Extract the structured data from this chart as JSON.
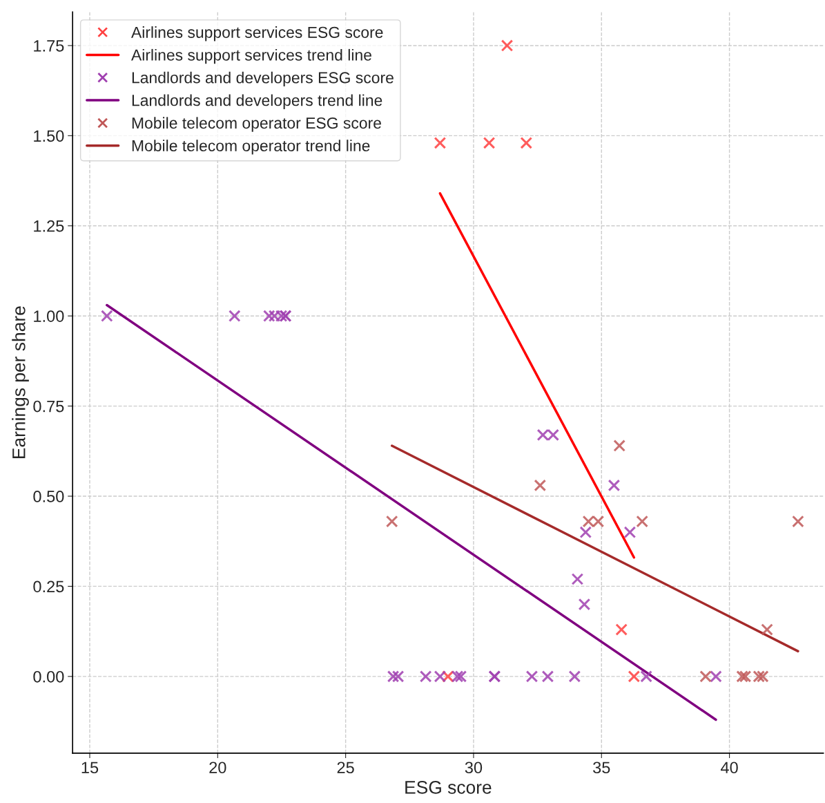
{
  "chart_data": {
    "type": "scatter",
    "xlabel": "ESG score",
    "ylabel": "Earnings per share",
    "xlim": [
      14.33,
      43.67
    ],
    "ylim": [
      -0.213,
      1.843
    ],
    "xticks": [
      15,
      20,
      25,
      30,
      35,
      40
    ],
    "yticks": [
      {
        "value": 0,
        "label": "0.00"
      },
      {
        "value": 0.25,
        "label": "0.25"
      },
      {
        "value": 0.5,
        "label": "0.50"
      },
      {
        "value": 0.75,
        "label": "0.75"
      },
      {
        "value": 1,
        "label": "1.00"
      },
      {
        "value": 1.25,
        "label": "1.25"
      },
      {
        "value": 1.5,
        "label": "1.50"
      },
      {
        "value": 1.75,
        "label": "1.75"
      }
    ],
    "grid": true,
    "legend": "top left",
    "marker": "cross",
    "series": [
      {
        "name": "Airlines support services ESG score",
        "color": "#ff4040",
        "x": [
          28.69,
          30.61,
          32.06,
          31.31,
          35.78,
          36.27,
          29.0
        ],
        "values": [
          1.48,
          1.48,
          1.48,
          1.75,
          0.13,
          0,
          0
        ]
      },
      {
        "type": "line",
        "name": "Airlines support services trend line",
        "color": "#ff0000",
        "marker": "none",
        "x": [
          28.69,
          36.27
        ],
        "values": [
          1.34,
          0.33
        ]
      },
      {
        "name": "Landlords and developers ESG score",
        "color": "#a040b0",
        "x": [
          15.67,
          20.66,
          22.01,
          22.22,
          22.49,
          22.65,
          22.65,
          26.86,
          27.05,
          28.13,
          28.69,
          29.37,
          29.5,
          30.82,
          30.82,
          32.28,
          32.9,
          33.95,
          36.75,
          39.47,
          32.71,
          33.11,
          35.49,
          34.38,
          36.11,
          34.06,
          34.33
        ],
        "values": [
          1,
          1,
          1,
          1,
          1,
          1,
          1,
          0,
          0,
          0,
          0,
          0,
          0,
          0,
          0,
          0,
          0,
          0,
          0,
          0,
          0.67,
          0.67,
          0.53,
          0.4,
          0.4,
          0.27,
          0.2
        ]
      },
      {
        "type": "line",
        "name": "Landlords and developers trend line",
        "color": "#800080",
        "marker": "none",
        "x": [
          15.67,
          39.47
        ],
        "values": [
          1.03,
          -0.12
        ]
      },
      {
        "name": "Mobile telecom operator ESG score",
        "color": "#c05858",
        "x": [
          26.81,
          32.6,
          35.7,
          34.49,
          34.87,
          36.59,
          42.68,
          41.47,
          39.07,
          40.5,
          40.62,
          41.15,
          41.3
        ],
        "values": [
          0.43,
          0.53,
          0.64,
          0.43,
          0.43,
          0.43,
          0.43,
          0.13,
          0,
          0,
          0,
          0,
          0
        ]
      },
      {
        "type": "line",
        "name": "Mobile telecom operator trend line",
        "color": "#a52a2a",
        "marker": "none",
        "x": [
          26.81,
          42.68
        ],
        "values": [
          0.64,
          0.07
        ]
      }
    ]
  }
}
